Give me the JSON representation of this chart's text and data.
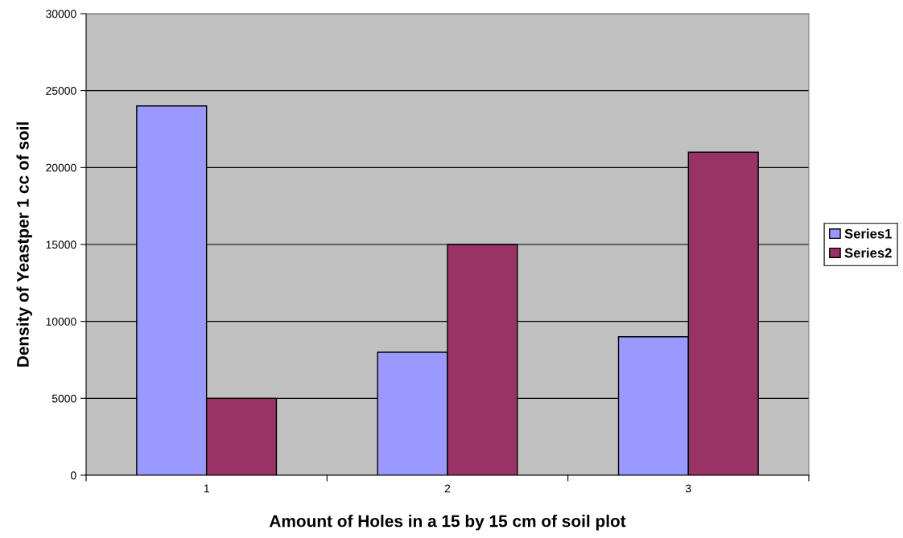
{
  "chart_data": {
    "type": "bar",
    "xlabel": "Amount of Holes in a 15 by 15 cm of soil plot",
    "ylabel": "Density of Yeastper 1 cc of soil",
    "categories": [
      "1",
      "2",
      "3"
    ],
    "series": [
      {
        "name": "Series1",
        "color": "#9999ff",
        "values": [
          24000,
          8000,
          9000
        ]
      },
      {
        "name": "Series2",
        "color": "#993366",
        "values": [
          5000,
          15000,
          21000
        ]
      }
    ],
    "ylim": [
      0,
      30000
    ],
    "yticks": [
      0,
      5000,
      10000,
      15000,
      20000,
      25000,
      30000
    ],
    "grid": "y",
    "legend": "right"
  }
}
